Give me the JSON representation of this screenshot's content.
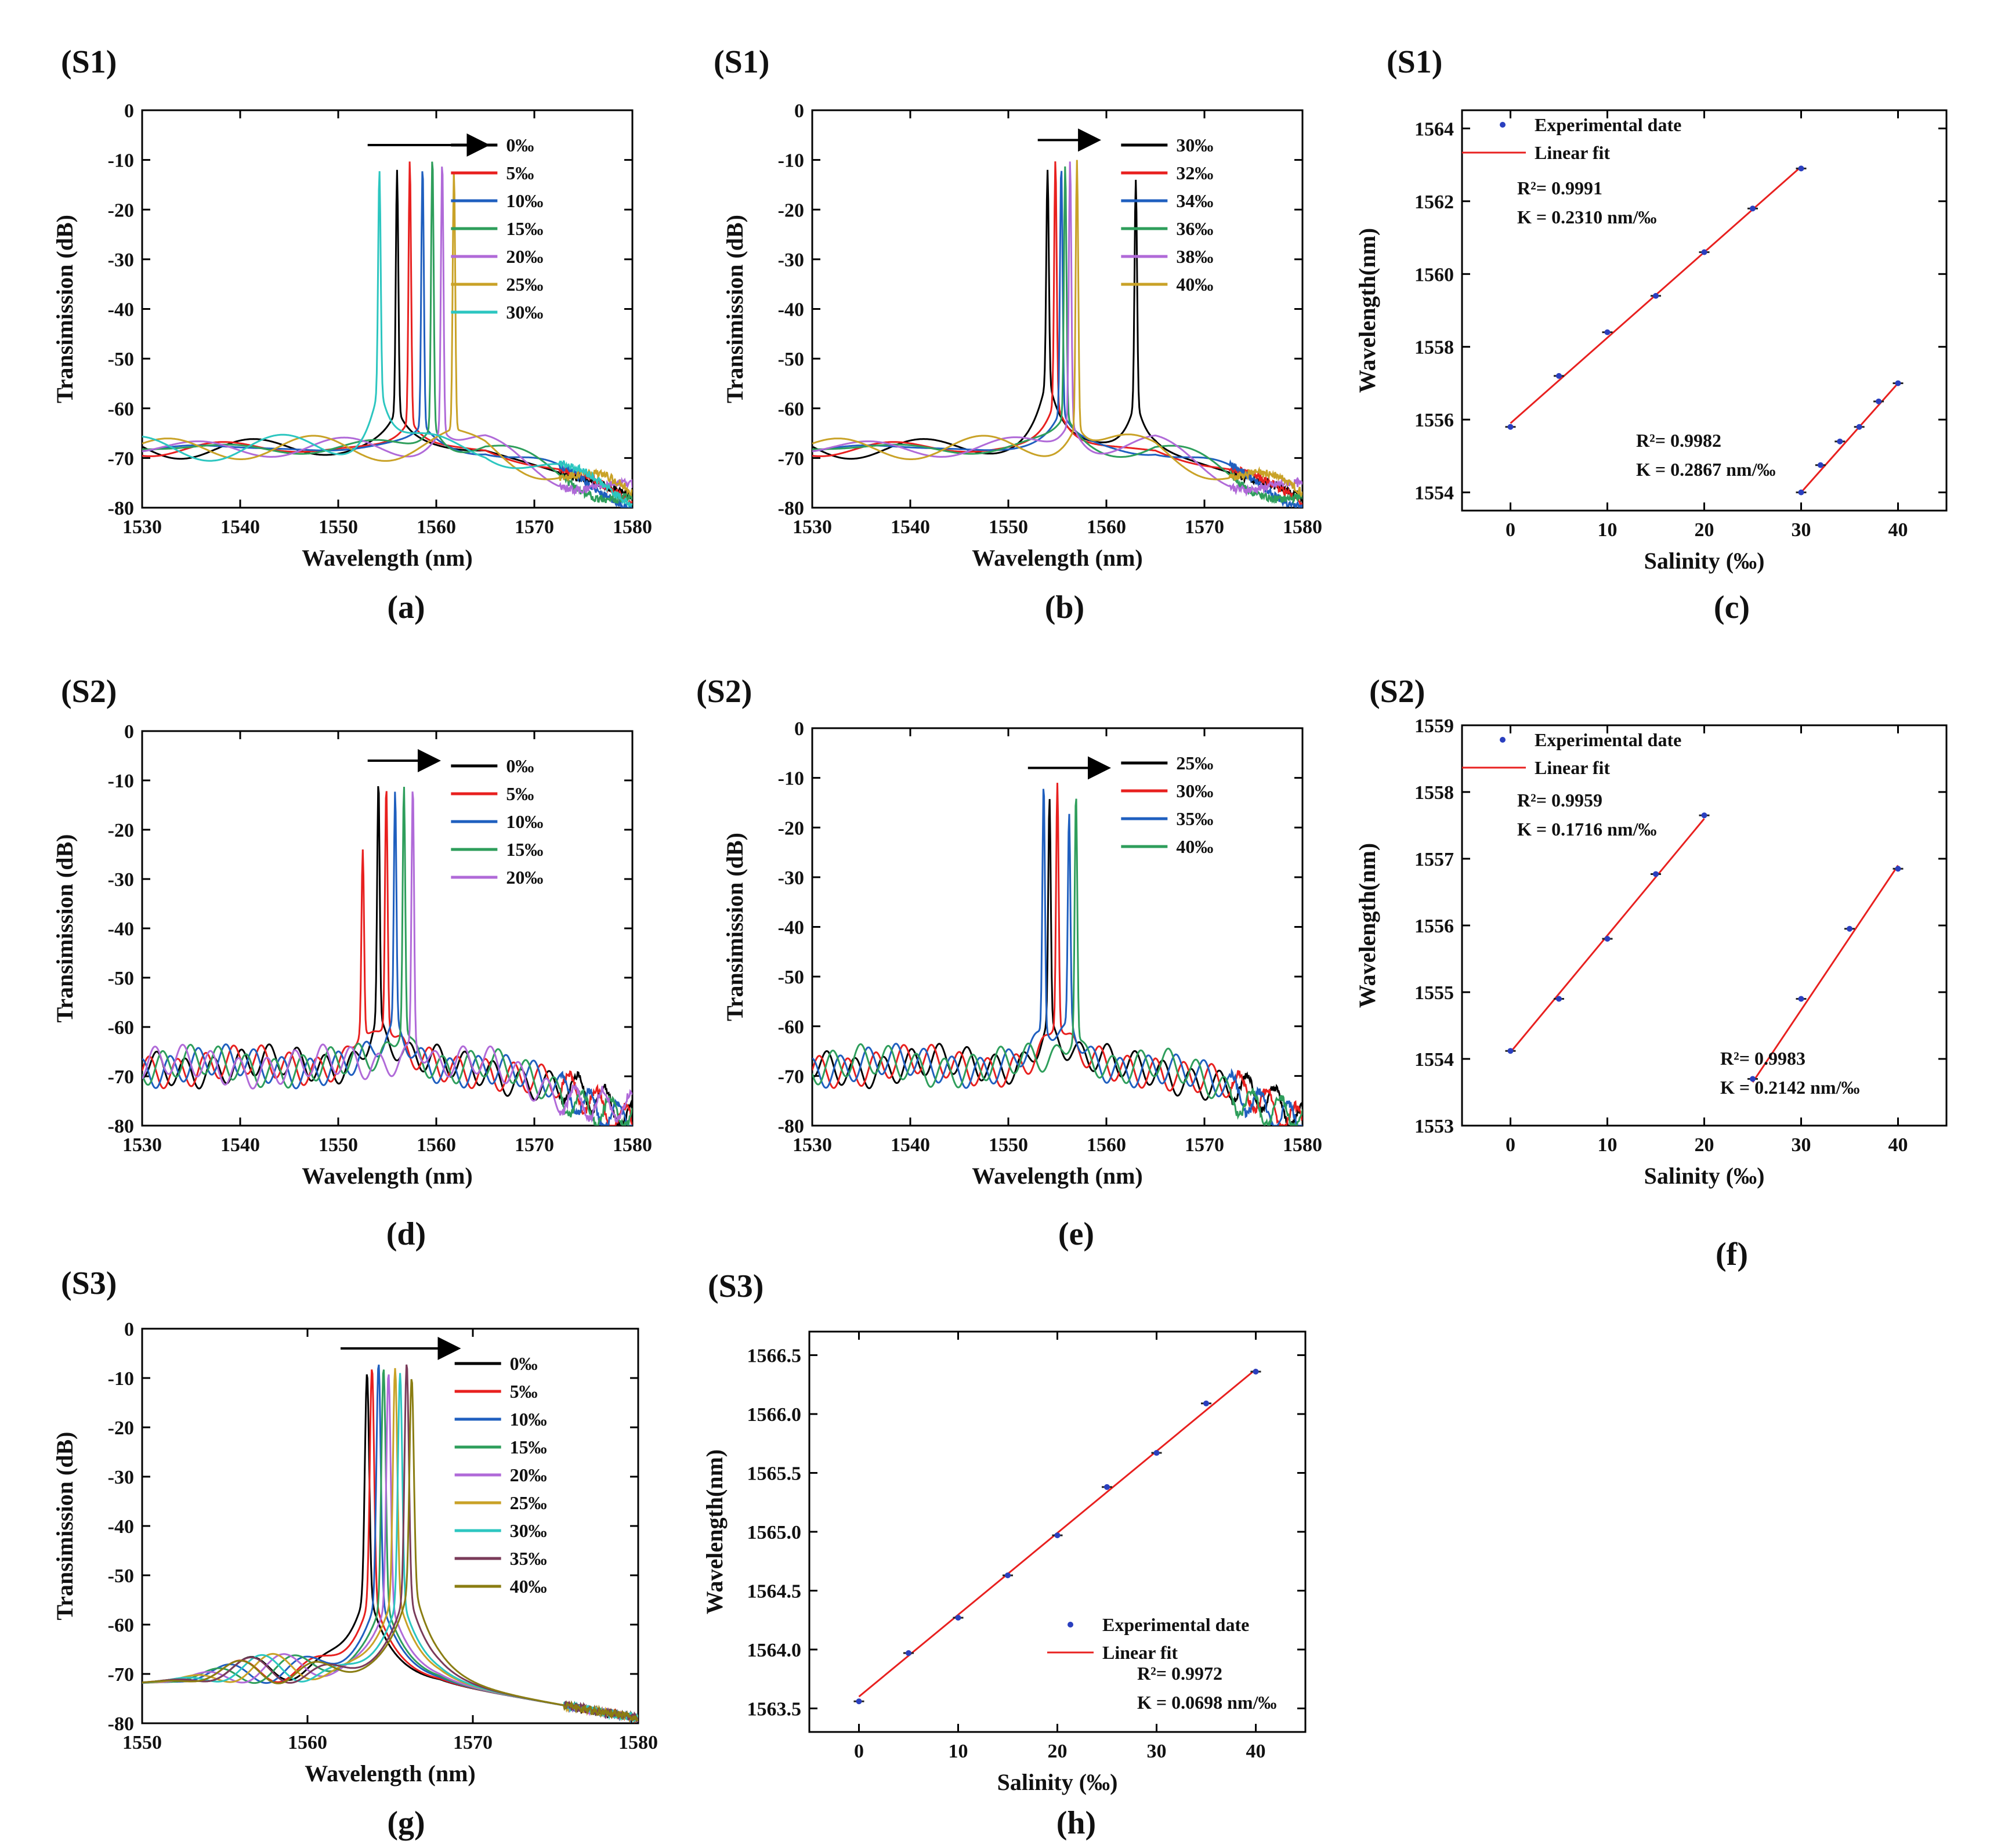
{
  "panels": [
    {
      "id": "a",
      "group": "(S1)",
      "caption": "(a)",
      "type": "spectrum",
      "xlim": [
        1530,
        1580
      ],
      "xticks": [
        1530,
        1540,
        1550,
        1560,
        1570,
        1580
      ],
      "ylim": [
        -80,
        0
      ],
      "yticks": [
        0,
        -10,
        -20,
        -30,
        -40,
        -50,
        -60,
        -70,
        -80
      ],
      "xlabel": "Wavelength (nm)",
      "ylabel": "Transimission (dB)",
      "arrow": {
        "x_from": 1553,
        "x_to": 1565,
        "y": -7
      },
      "series": [
        {
          "name": "0‰",
          "color": "#000000",
          "peak": 1556.0,
          "peak_db": -12,
          "side_db": -60
        },
        {
          "name": "5‰",
          "color": "#e8201f",
          "peak": 1557.3,
          "peak_db": -10,
          "side_db": -62
        },
        {
          "name": "10‰",
          "color": "#1f5fbf",
          "peak": 1558.6,
          "peak_db": -11,
          "side_db": -63
        },
        {
          "name": "15‰",
          "color": "#2e9e5b",
          "peak": 1559.6,
          "peak_db": -9,
          "side_db": -63
        },
        {
          "name": "20‰",
          "color": "#b06ad8",
          "peak": 1560.6,
          "peak_db": -10,
          "side_db": -64
        },
        {
          "name": "25‰",
          "color": "#c9a227",
          "peak": 1561.8,
          "peak_db": -12,
          "side_db": -64
        },
        {
          "name": "30‰",
          "color": "#2cc6c0",
          "peak": 1554.2,
          "peak_db": -12,
          "side_db": -55
        }
      ]
    },
    {
      "id": "b",
      "group": "(S1)",
      "caption": "(b)",
      "type": "spectrum",
      "xlim": [
        1530,
        1580
      ],
      "xticks": [
        1530,
        1540,
        1550,
        1560,
        1570,
        1580
      ],
      "ylim": [
        -80,
        0
      ],
      "yticks": [
        0,
        -10,
        -20,
        -30,
        -40,
        -50,
        -60,
        -70,
        -80
      ],
      "xlabel": "Wavelength (nm)",
      "ylabel": "Transimission (dB)",
      "arrow": {
        "x_from": 1553,
        "x_to": 1559,
        "y": -6
      },
      "series": [
        {
          "name": "30‰",
          "color": "#000000",
          "peak": 1554.0,
          "peak_db": -12,
          "side_db": -53,
          "peak2": 1563.0,
          "peak2_db": -14
        },
        {
          "name": "32‰",
          "color": "#e8201f",
          "peak": 1554.8,
          "peak_db": -10,
          "side_db": -58
        },
        {
          "name": "34‰",
          "color": "#1f5fbf",
          "peak": 1555.4,
          "peak_db": -11,
          "side_db": -60
        },
        {
          "name": "36‰",
          "color": "#2e9e5b",
          "peak": 1555.8,
          "peak_db": -11,
          "side_db": -61
        },
        {
          "name": "38‰",
          "color": "#b06ad8",
          "peak": 1556.3,
          "peak_db": -10,
          "side_db": -62
        },
        {
          "name": "40‰",
          "color": "#c9a227",
          "peak": 1557.0,
          "peak_db": -10,
          "side_db": -63
        }
      ]
    },
    {
      "id": "c",
      "group": "(S1)",
      "caption": "(c)",
      "type": "fit",
      "xlim": [
        -5,
        45
      ],
      "xticks": [
        0,
        10,
        20,
        30,
        40
      ],
      "ylim": [
        1553.5,
        1564.5
      ],
      "yticks": [
        1554,
        1556,
        1558,
        1560,
        1562,
        1564
      ],
      "xlabel": "Salinity (‰)",
      "ylabel": "Wavelength(nm)",
      "legend": {
        "point_label": "Experimental date",
        "line_label": "Linear fit"
      },
      "fits": [
        {
          "x": [
            0,
            5,
            10,
            15,
            20,
            25,
            30
          ],
          "y": [
            1555.8,
            1557.2,
            1558.4,
            1559.4,
            1560.6,
            1561.8,
            1562.9
          ],
          "r2": "R²= 0.9991",
          "k": "K = 0.2310 nm/‰",
          "line": [
            1555.9,
            1562.95
          ]
        },
        {
          "x": [
            30,
            32,
            34,
            36,
            38,
            40
          ],
          "y": [
            1554.0,
            1554.75,
            1555.4,
            1555.8,
            1556.5,
            1557.0
          ],
          "r2": "R²= 0.9982",
          "k": "K = 0.2867 nm/‰",
          "line": [
            1554.0,
            1557.0
          ]
        }
      ]
    },
    {
      "id": "d",
      "group": "(S2)",
      "caption": "(d)",
      "type": "spectrum",
      "xlim": [
        1530,
        1580
      ],
      "xticks": [
        1530,
        1540,
        1550,
        1560,
        1570,
        1580
      ],
      "ylim": [
        -80,
        0
      ],
      "yticks": [
        0,
        -10,
        -20,
        -30,
        -40,
        -50,
        -60,
        -70,
        -80
      ],
      "xlabel": "Wavelength (nm)",
      "ylabel": "Transimission (dB)",
      "arrow": {
        "x_from": 1553,
        "x_to": 1560,
        "y": -6
      },
      "series": [
        {
          "name": "0‰",
          "color": "#000000",
          "peak": 1554.1,
          "peak_db": -10,
          "side_db": -57
        },
        {
          "name": "5‰",
          "color": "#e8201f",
          "peak": 1552.5,
          "peak_db": -24,
          "side_db": -60,
          "peak2": 1554.9,
          "peak2_db": -11
        },
        {
          "name": "10‰",
          "color": "#1f5fbf",
          "peak": 1555.8,
          "peak_db": -12,
          "side_db": -58
        },
        {
          "name": "15‰",
          "color": "#2e9e5b",
          "peak": 1556.7,
          "peak_db": -11,
          "side_db": -59
        },
        {
          "name": "20‰",
          "color": "#b06ad8",
          "peak": 1557.6,
          "peak_db": -11,
          "side_db": -62
        }
      ]
    },
    {
      "id": "e",
      "group": "(S2)",
      "caption": "(e)",
      "type": "spectrum",
      "xlim": [
        1530,
        1580
      ],
      "xticks": [
        1530,
        1540,
        1550,
        1560,
        1570,
        1580
      ],
      "ylim": [
        -80,
        0
      ],
      "yticks": [
        0,
        -10,
        -20,
        -30,
        -40,
        -50,
        -60,
        -70,
        -80
      ],
      "xlabel": "Wavelength (nm)",
      "ylabel": "Transimission (dB)",
      "arrow": {
        "x_from": 1552,
        "x_to": 1560,
        "y": -8
      },
      "series": [
        {
          "name": "25‰",
          "color": "#000000",
          "peak": 1554.2,
          "peak_db": -14,
          "side_db": -58
        },
        {
          "name": "30‰",
          "color": "#e8201f",
          "peak": 1555.0,
          "peak_db": -11,
          "side_db": -58
        },
        {
          "name": "35‰",
          "color": "#1f5fbf",
          "peak": 1553.6,
          "peak_db": -11,
          "side_db": -60,
          "peak2": 1556.2,
          "peak2_db": -17
        },
        {
          "name": "40‰",
          "color": "#2e9e5b",
          "peak": 1556.9,
          "peak_db": -13,
          "side_db": -61
        }
      ]
    },
    {
      "id": "f",
      "group": "(S2)",
      "caption": "(f)",
      "type": "fit",
      "xlim": [
        -5,
        45
      ],
      "xticks": [
        0,
        10,
        20,
        30,
        40
      ],
      "ylim": [
        1553,
        1559
      ],
      "yticks": [
        1553,
        1554,
        1555,
        1556,
        1557,
        1558,
        1559
      ],
      "xlabel": "Salinity (‰)",
      "ylabel": "Wavelength(nm)",
      "legend": {
        "point_label": "Experimental date",
        "line_label": "Linear fit"
      },
      "fits": [
        {
          "x": [
            0,
            5,
            10,
            15,
            20
          ],
          "y": [
            1554.12,
            1554.9,
            1555.8,
            1556.77,
            1557.65
          ],
          "r2": "R²= 0.9959",
          "k": "K = 0.1716 nm/‰",
          "line": [
            1554.1,
            1557.6
          ]
        },
        {
          "x": [
            25,
            30,
            35,
            40
          ],
          "y": [
            1553.7,
            1554.9,
            1555.95,
            1556.85
          ],
          "r2": "R²= 0.9983",
          "k": "K = 0.2142 nm/‰",
          "line": [
            1553.65,
            1556.9
          ]
        }
      ]
    },
    {
      "id": "g",
      "group": "(S3)",
      "caption": "(g)",
      "type": "spectrum",
      "xlim": [
        1550,
        1580
      ],
      "xticks": [
        1550,
        1560,
        1570,
        1580
      ],
      "ylim": [
        -80,
        0
      ],
      "yticks": [
        0,
        -10,
        -20,
        -30,
        -40,
        -50,
        -60,
        -70,
        -80
      ],
      "xlabel": "Wavelength (nm)",
      "ylabel": "Transimission (dB)",
      "arrow": {
        "x_from": 1562,
        "x_to": 1569,
        "y": -4
      },
      "series": [
        {
          "name": "0‰",
          "color": "#000000",
          "peak": 1563.6,
          "peak_db": -9,
          "side_db": -52
        },
        {
          "name": "5‰",
          "color": "#e8201f",
          "peak": 1563.9,
          "peak_db": -8,
          "side_db": -53
        },
        {
          "name": "10‰",
          "color": "#1f5fbf",
          "peak": 1564.3,
          "peak_db": -7,
          "side_db": -53
        },
        {
          "name": "15‰",
          "color": "#2e9e5b",
          "peak": 1564.6,
          "peak_db": -8,
          "side_db": -54
        },
        {
          "name": "20‰",
          "color": "#b06ad8",
          "peak": 1564.9,
          "peak_db": -9,
          "side_db": -54
        },
        {
          "name": "25‰",
          "color": "#c9a227",
          "peak": 1565.3,
          "peak_db": -8,
          "side_db": -52
        },
        {
          "name": "30‰",
          "color": "#2cc6c0",
          "peak": 1565.6,
          "peak_db": -9,
          "side_db": -53
        },
        {
          "name": "35‰",
          "color": "#7a3b5a",
          "peak": 1566.0,
          "peak_db": -7,
          "side_db": -52
        },
        {
          "name": "40‰",
          "color": "#8a7d12",
          "peak": 1566.3,
          "peak_db": -10,
          "side_db": -50
        }
      ]
    },
    {
      "id": "h",
      "group": "(S3)",
      "caption": "(h)",
      "type": "fit",
      "xlim": [
        -5,
        45
      ],
      "xticks": [
        0,
        10,
        20,
        30,
        40
      ],
      "ylim": [
        1563.3,
        1566.7
      ],
      "yticks": [
        1563.5,
        1564.0,
        1564.5,
        1565.0,
        1565.5,
        1566.0,
        1566.5
      ],
      "ytick_decimals": 1,
      "xlabel": "Salinity (‰)",
      "ylabel": "Wavelength(nm)",
      "legend": {
        "point_label": "Experimental date",
        "line_label": "Linear fit"
      },
      "fits": [
        {
          "x": [
            0,
            5,
            10,
            15,
            20,
            25,
            30,
            35,
            40
          ],
          "y": [
            1563.56,
            1563.97,
            1564.27,
            1564.63,
            1564.97,
            1565.38,
            1565.67,
            1566.09,
            1566.36
          ],
          "r2": "R²= 0.9972",
          "k": "K = 0.0698 nm/‰",
          "line": [
            1563.6,
            1566.38
          ]
        }
      ]
    }
  ]
}
